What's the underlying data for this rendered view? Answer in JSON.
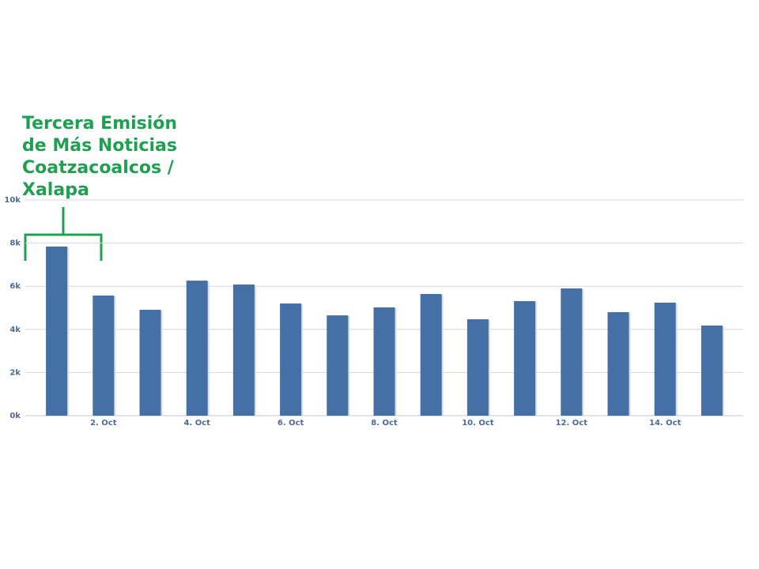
{
  "chart_data": {
    "type": "bar",
    "annotation": [
      "Tercera Emisión",
      "de Más Noticias",
      "Coatzacoalcos /",
      "Xalapa"
    ],
    "categories": [
      null,
      "2. Oct",
      null,
      "4. Oct",
      null,
      "6. Oct",
      null,
      "8. Oct",
      null,
      "10. Oct",
      null,
      "12. Oct",
      null,
      "14. Oct",
      null
    ],
    "values": [
      7840,
      5570,
      4910,
      6260,
      6080,
      5200,
      4650,
      5020,
      5640,
      4470,
      5310,
      5900,
      4800,
      5240,
      4180
    ],
    "color": "#4470a5",
    "ylim": [
      0,
      10000
    ],
    "yticks": [
      {
        "value": 0,
        "label": "0k"
      },
      {
        "value": 2000,
        "label": "2k"
      },
      {
        "value": 4000,
        "label": "4k"
      },
      {
        "value": 6000,
        "label": "6k"
      },
      {
        "value": 8000,
        "label": "8k"
      },
      {
        "value": 10000,
        "label": "10k"
      }
    ],
    "grid": true
  }
}
